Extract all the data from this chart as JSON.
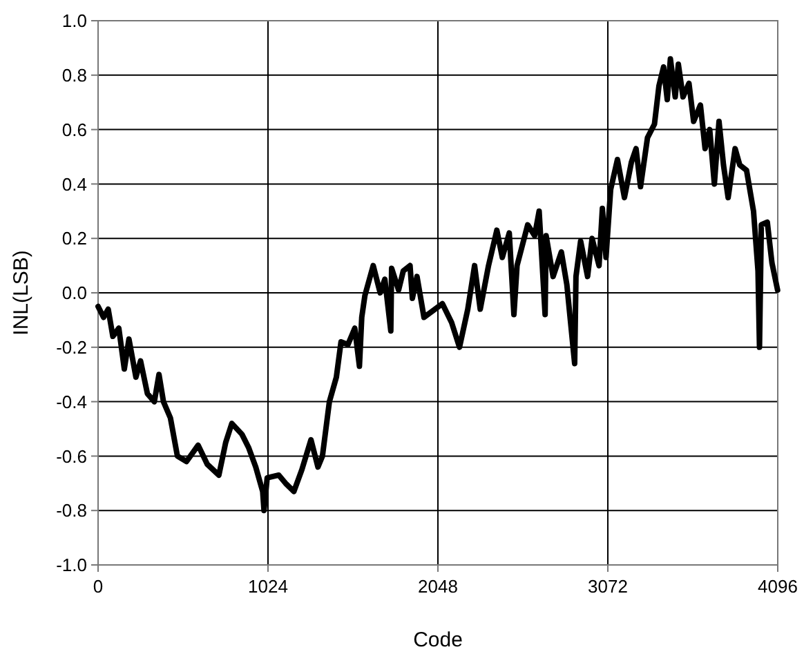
{
  "chart_data": {
    "type": "line",
    "xlabel": "Code",
    "ylabel": "INL(LSB)",
    "xlim": [
      0,
      4096
    ],
    "xticks": [
      0,
      1024,
      2048,
      3072,
      4096
    ],
    "ylim": [
      -1,
      1
    ],
    "yticks": [
      {
        "value": -1,
        "label": "-1.0"
      },
      -0.8,
      -0.6,
      -0.4,
      -0.2,
      {
        "value": 0,
        "label": "0.0"
      },
      0.2,
      0.4,
      0.6,
      0.8,
      {
        "value": 1,
        "label": "1.0"
      }
    ],
    "grid": true,
    "line_style": "solid",
    "marker": "none",
    "series": [
      {
        "color": "#000000",
        "x": [
          0,
          33,
          61,
          89,
          125,
          158,
          186,
          228,
          256,
          297,
          339,
          367,
          394,
          436,
          478,
          533,
          603,
          658,
          728,
          769,
          806,
          867,
          908,
          950,
          992,
          1000,
          1019,
          1089,
          1130,
          1180,
          1228,
          1283,
          1325,
          1352,
          1394,
          1436,
          1464,
          1506,
          1547,
          1575,
          1589,
          1608,
          1658,
          1700,
          1728,
          1764,
          1769,
          1811,
          1839,
          1880,
          1894,
          1922,
          1964,
          2075,
          2131,
          2178,
          2228,
          2269,
          2303,
          2353,
          2403,
          2436,
          2478,
          2506,
          2525,
          2589,
          2631,
          2658,
          2694,
          2700,
          2742,
          2792,
          2825,
          2872,
          2880,
          2908,
          2950,
          2977,
          3019,
          3039,
          3061,
          3089,
          3130,
          3172,
          3214,
          3242,
          3269,
          3311,
          3353,
          3380,
          3408,
          3430,
          3449,
          3478,
          3497,
          3525,
          3561,
          3589,
          3630,
          3658,
          3686,
          3714,
          3742,
          3769,
          3797,
          3839,
          3867,
          3908,
          3950,
          3977,
          3986,
          3997,
          4033,
          4061,
          4095
        ],
        "values": [
          -0.05,
          -0.09,
          -0.06,
          -0.16,
          -0.13,
          -0.28,
          -0.17,
          -0.31,
          -0.25,
          -0.37,
          -0.4,
          -0.3,
          -0.4,
          -0.46,
          -0.6,
          -0.62,
          -0.56,
          -0.63,
          -0.67,
          -0.55,
          -0.48,
          -0.52,
          -0.57,
          -0.64,
          -0.73,
          -0.8,
          -0.68,
          -0.67,
          -0.7,
          -0.73,
          -0.65,
          -0.54,
          -0.64,
          -0.6,
          -0.4,
          -0.31,
          -0.18,
          -0.19,
          -0.13,
          -0.27,
          -0.09,
          -0.01,
          0.1,
          0,
          0.05,
          -0.14,
          0.09,
          0.01,
          0.08,
          0.1,
          -0.02,
          0.06,
          -0.09,
          -0.04,
          -0.11,
          -0.2,
          -0.06,
          0.1,
          -0.06,
          0.1,
          0.23,
          0.13,
          0.22,
          -0.08,
          0.1,
          0.25,
          0.21,
          0.3,
          -0.08,
          0.21,
          0.06,
          0.15,
          0.03,
          -0.26,
          0.06,
          0.19,
          0.06,
          0.2,
          0.1,
          0.31,
          0.13,
          0.38,
          0.49,
          0.35,
          0.48,
          0.53,
          0.39,
          0.57,
          0.62,
          0.76,
          0.83,
          0.71,
          0.86,
          0.72,
          0.84,
          0.72,
          0.77,
          0.63,
          0.69,
          0.53,
          0.6,
          0.4,
          0.63,
          0.47,
          0.35,
          0.53,
          0.47,
          0.45,
          0.3,
          0.08,
          -0.2,
          0.25,
          0.26,
          0.11,
          0.01
        ]
      }
    ]
  }
}
